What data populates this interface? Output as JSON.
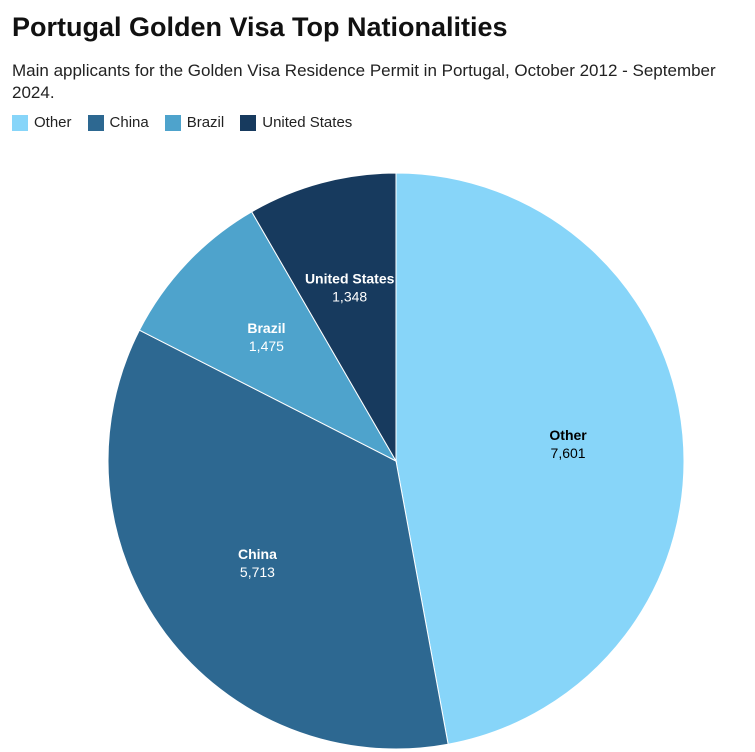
{
  "chart_data": {
    "type": "pie",
    "title": "Portugal Golden Visa Top Nationalities",
    "subtitle": "Main applicants for the Golden Visa Residence Permit in Portugal, October 2012 - September 2024.",
    "categories": [
      "Other",
      "China",
      "Brazil",
      "United States"
    ],
    "values": [
      7601,
      5713,
      1475,
      1348
    ],
    "value_labels": [
      "7,601",
      "5,713",
      "1,475",
      "1,348"
    ],
    "colors": [
      "#87d5f9",
      "#2d6891",
      "#4ea3cc",
      "#173a5e"
    ],
    "label_colors": [
      "#000000",
      "#ffffff",
      "#ffffff",
      "#ffffff"
    ]
  }
}
